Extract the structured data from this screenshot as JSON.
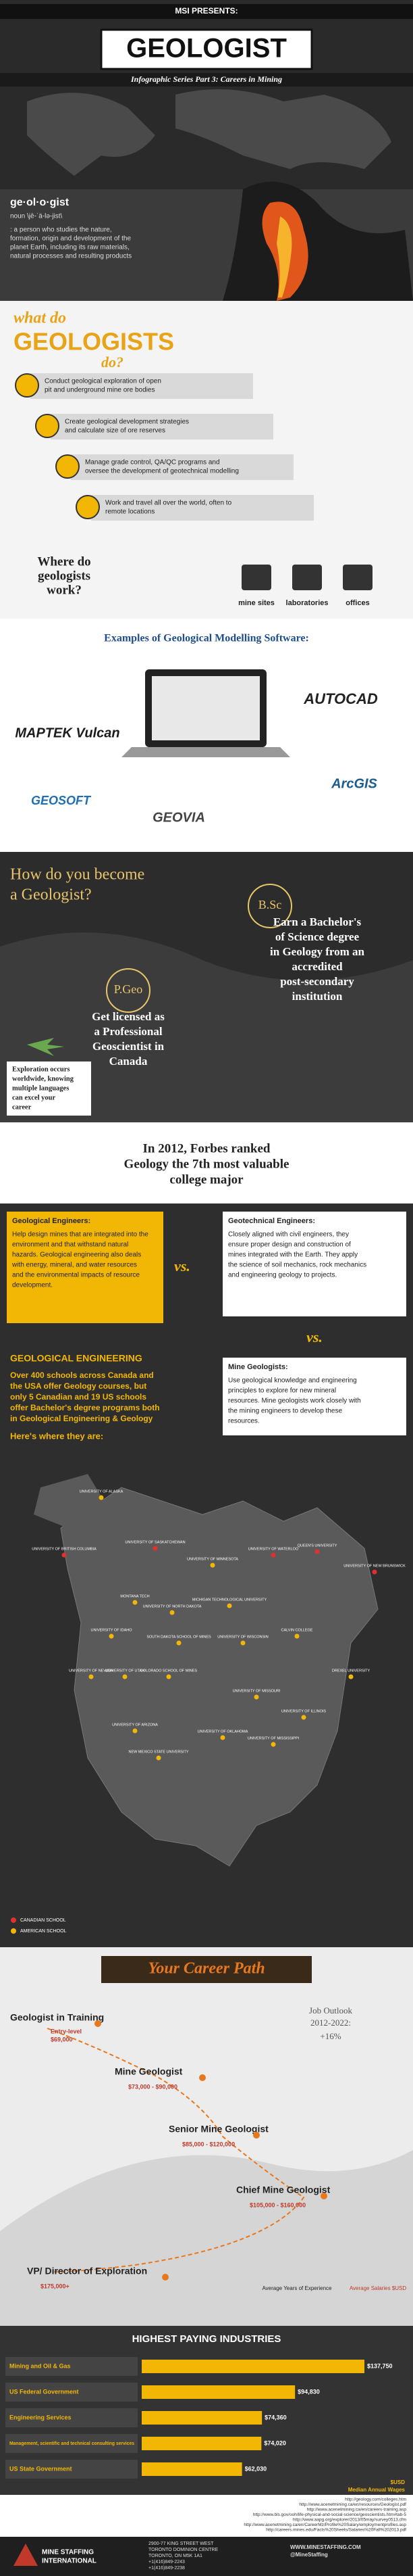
{
  "header": {
    "presents": "MSI PRESENTS:",
    "title": "GEOLOGIST",
    "subtitle": "Infographic Series Part 3: Careers in Mining"
  },
  "definition": {
    "word": "ge·ol·o·gist",
    "pronunciation": "noun \\jē-ˈä-lə-jist\\",
    "lines": [
      ": a person who studies the nature,",
      "formation, origin and development of the",
      "planet Earth, including its raw materials,",
      "natural processes and resulting products"
    ]
  },
  "duties": {
    "heading": [
      "what do",
      "GEOLOGISTS",
      "do?"
    ],
    "items": [
      [
        "Conduct geological exploration of open",
        "pit and underground mine ore bodies"
      ],
      [
        "Create geological development strategies",
        "and calculate size of ore reserves"
      ],
      [
        "Manage grade control, QA/QC programs and",
        "oversee the development of geotechnical modelling"
      ],
      [
        "Work and travel all over the world, often to",
        "remote locations"
      ]
    ]
  },
  "workplaces": {
    "heading": [
      "Where do",
      "geologists",
      "work?"
    ],
    "places": [
      "mine sites",
      "laboratories",
      "offices"
    ]
  },
  "software": {
    "heading": "Examples of Geological Modelling Software:",
    "logos": [
      "MAPTEK Vulcan",
      "AUTOCAD",
      "GEOSOFT",
      "GEOVIA",
      "ArcGIS"
    ]
  },
  "education": {
    "heading": [
      "How do you become",
      "a Geologist?"
    ],
    "steps": [
      {
        "label": "B.Sc",
        "lines": [
          "Earn a Bachelor's",
          "of Science degree",
          "in Geology from an",
          "accredited",
          "post-secondary",
          "institution"
        ]
      },
      {
        "label": "P.Geo",
        "lines": [
          "Get licensed as",
          "a Professional",
          "Geoscientist in",
          "Canada"
        ]
      }
    ],
    "note": [
      "Exploration occurs",
      "worldwide, knowing",
      "multiple languages",
      "can excel your",
      "career"
    ]
  },
  "forbes": [
    "In 2012, Forbes ranked",
    "Geology the 7th most valuable",
    "college major"
  ],
  "comparison": {
    "vs": "vs.",
    "geological": {
      "title": "Geological Engineers:",
      "lines": [
        "Help design mines that are integrated into the",
        "environment and that withstand natural",
        "hazards. Geological engineering also deals",
        "with energy, mineral, and water resources",
        "and the environmental impacts of resource",
        "development."
      ]
    },
    "geotechnical": {
      "title": "Geotechnical Engineers:",
      "lines": [
        "Closely aligned with civil engineers, they",
        "ensure proper design and construction of",
        "mines integrated with the Earth. They apply",
        "the science of soil mechanics, rock mechanics",
        "and engineering geology to projects."
      ]
    },
    "mine": {
      "title": "Mine Geologists:",
      "lines": [
        "Use geological knowledge and engineering",
        "principles to explore for new mineral",
        "resources. Mine geologists work closely with",
        "the mining engineers to develop these",
        "resources."
      ]
    }
  },
  "schools": {
    "heading": "GEOLOGICAL ENGINEERING",
    "lines": [
      "Over 400 schools across Canada and",
      "the USA offer Geology courses, but",
      "only 5 Canadian and 19 US schools",
      "offer Bachelor's degree programs both",
      "in Geological Engineering & Geology"
    ],
    "where": "Here's where they are:",
    "legend": [
      "CANADIAN SCHOOL",
      "AMERICAN SCHOOL"
    ],
    "canadian": [
      "UNIVERSITY OF BRITISH COLUMBIA",
      "UNIVERSITY OF SASKATCHEWAN",
      "UNIVERSITY OF WATERLOO",
      "QUEEN'S UNIVERSITY",
      "UNIVERSITY OF NEW BRUNSWICK"
    ],
    "american": [
      "UNIVERSITY OF ALASKA",
      "UNIVERSITY OF MINNESOTA",
      "MICHIGAN TECHNOLOGICAL UNIVERSITY",
      "UNIVERSITY OF NORTH DAKOTA",
      "SOUTH DAKOTA SCHOOL OF MINES",
      "MONTANA TECH",
      "UNIVERSITY OF IDAHO",
      "UNIVERSITY OF NEVADA",
      "UNIVERSITY OF UTAH",
      "COLORADO SCHOOL OF MINES",
      "UNIVERSITY OF ARIZONA",
      "NEW MEXICO STATE UNIVERSITY",
      "UNIVERSITY OF OKLAHOMA",
      "UNIVERSITY OF MISSOURI",
      "UNIVERSITY OF MISSISSIPPI",
      "UNIVERSITY OF WISCONSIN",
      "CALVIN COLLEGE",
      "DREXEL UNIVERSITY",
      "UNIVERSITY OF ILLINOIS"
    ]
  },
  "career": {
    "title": "Your Career Path",
    "outlook": [
      "Job Outlook",
      "2012-2022:",
      "+16%"
    ],
    "stages": [
      {
        "title": "Geologist in Training",
        "salary": "Entry-level",
        "pay": "$69,000"
      },
      {
        "title": "Mine Geologist",
        "pay": "$73,000 - $90,000"
      },
      {
        "title": "Senior Mine Geologist",
        "pay": "$85,000 - $120,000"
      },
      {
        "title": "Chief Mine Geologist",
        "pay": "$105,000 - $160,000"
      },
      {
        "title": "VP/ Director of Exploration",
        "pay": "$175,000+"
      }
    ],
    "legend": [
      "Average Years of Experience",
      "Average Salaries $USD"
    ]
  },
  "industries": {
    "heading": "HIGHEST PAYING INDUSTRIES",
    "categories": [
      "Mining and Oil & Gas",
      "US Federal Government",
      "Engineering Services",
      "Management, scientific and technical consulting services",
      "US State Government"
    ],
    "values": [
      137750,
      94830,
      74360,
      74020,
      62030
    ],
    "value_labels": [
      "$137,750",
      "$94,830",
      "$74,360",
      "$74,020",
      "$62,030"
    ],
    "color": "#f2b705",
    "unit": "$USD",
    "caption": "Median Annual Wages"
  },
  "sources": [
    "http://geology.com/colleges.htm",
    "http://www.acenetmining.ca/en/resources/Geologist.pdf",
    "http://www.acenetmining.ca/en/careers-training.asp",
    "http://www.bls.gov/ooh/life-physical-and-social-science/geoscientists.htm#tab-5",
    "http://www.aapg.org/explorer/2013/05may/survey0513.cfm",
    "http://www.acenetmining.ca/en/CareerMz/Profile%20Salary/employmentprofiles.asp",
    "http://careers.mines.edu/Facts%20Sheets/Salaries%20Fall%202013.pdf"
  ],
  "footer": {
    "company": [
      "MINE STAFFING",
      "INTERNATIONAL"
    ],
    "address": [
      "2900-77 KING STREET WEST",
      "TORONTO DOMINION CENTRE",
      "TORONTO, ON M5K 1A1",
      "+1(416)849-2243",
      "+1(416)849-2238"
    ],
    "web": [
      "WWW.MINESTAFFING.COM",
      "@MineStaffing"
    ]
  }
}
